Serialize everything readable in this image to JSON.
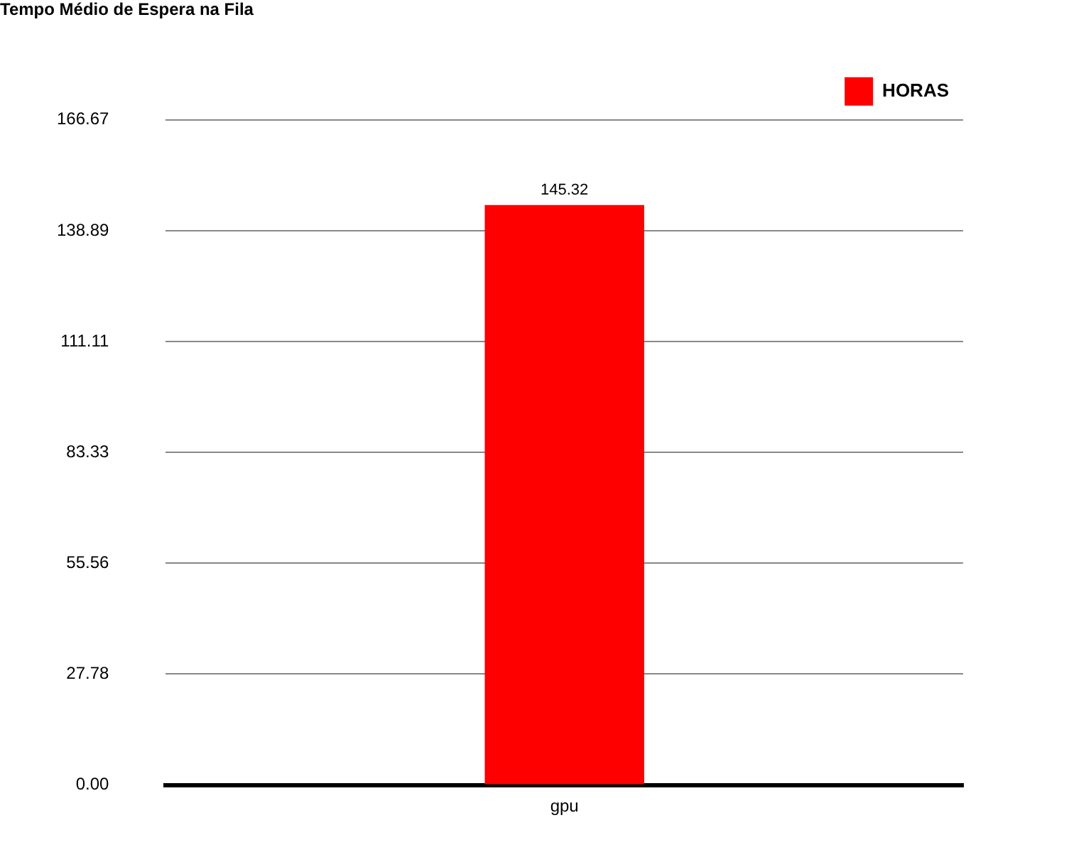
{
  "chart_data": {
    "type": "bar",
    "title": "Tempo Médio de Espera na Fila",
    "categories": [
      "gpu"
    ],
    "series": [
      {
        "name": "HORAS",
        "color": "#ff0000",
        "values": [
          145.32
        ]
      }
    ],
    "ylim": [
      0,
      166.67
    ],
    "yticks": [
      {
        "value": 0,
        "label": "0.00"
      },
      27.78,
      55.56,
      83.33,
      111.11,
      138.89,
      166.67
    ],
    "grid": "y",
    "legend": "top right",
    "data_labels": true
  }
}
